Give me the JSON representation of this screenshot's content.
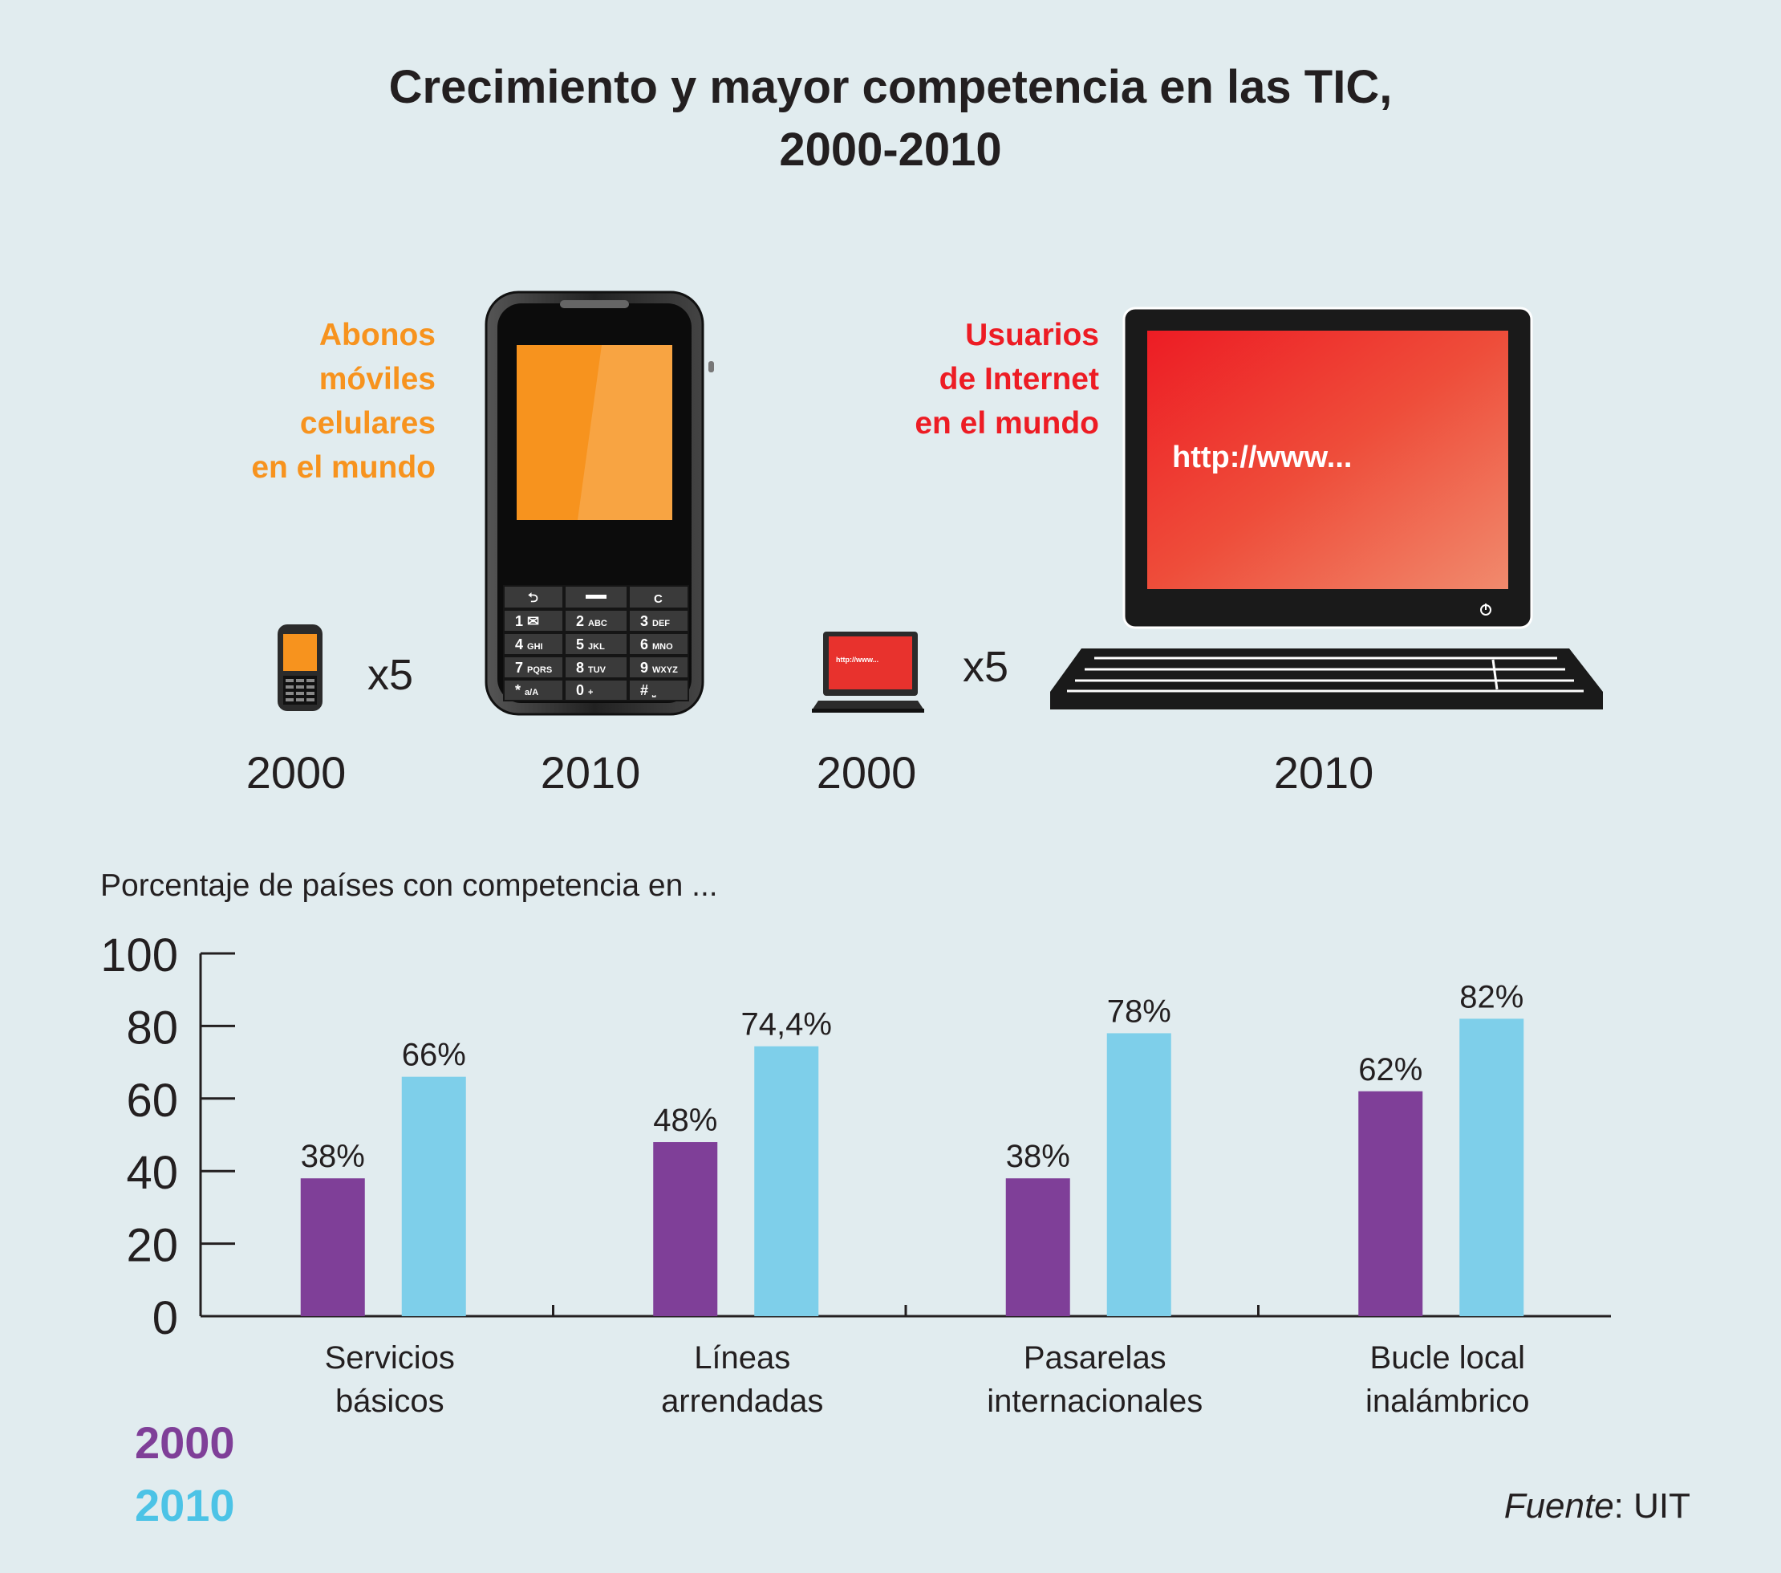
{
  "title": {
    "line1": "Crecimiento y mayor competencia en las TIC,",
    "line2": "2000-2010"
  },
  "mobile": {
    "label": [
      "Abonos",
      "móviles",
      "celulares",
      "en el mundo"
    ],
    "multiplier": "x5",
    "year_start": "2000",
    "year_end": "2010",
    "color": "#f7931e"
  },
  "internet": {
    "label": [
      "Usuarios",
      "de Internet",
      "en el mundo"
    ],
    "multiplier": "x5",
    "year_start": "2000",
    "year_end": "2010",
    "screen_text": "http://www...",
    "color": "#ed1c24"
  },
  "chart_data": {
    "type": "bar",
    "title": "Porcentaje de países con competencia en ...",
    "categories": [
      [
        "Servicios",
        "básicos"
      ],
      [
        "Líneas",
        "arrendadas"
      ],
      [
        "Pasarelas",
        "internacionales"
      ],
      [
        "Bucle local",
        "inalámbrico"
      ]
    ],
    "series": [
      {
        "name": "2000",
        "values": [
          38,
          48,
          38,
          62
        ],
        "labels": [
          "38%",
          "48%",
          "38%",
          "62%"
        ],
        "color": "#7f3f98"
      },
      {
        "name": "2010",
        "values": [
          66,
          74.4,
          78,
          82
        ],
        "labels": [
          "66%",
          "74,4%",
          "78%",
          "82%"
        ],
        "color": "#7ecfea"
      }
    ],
    "ylim": [
      0,
      100
    ],
    "yticks": [
      "0",
      "20",
      "40",
      "60",
      "80",
      "100"
    ],
    "grid": false,
    "legend": "bottom-left"
  },
  "legend": {
    "first": "2000",
    "second": "2010",
    "first_color": "#7f3f98",
    "second_color": "#4cc3e6"
  },
  "source": {
    "label": "Fuente",
    "value": ": UIT"
  }
}
